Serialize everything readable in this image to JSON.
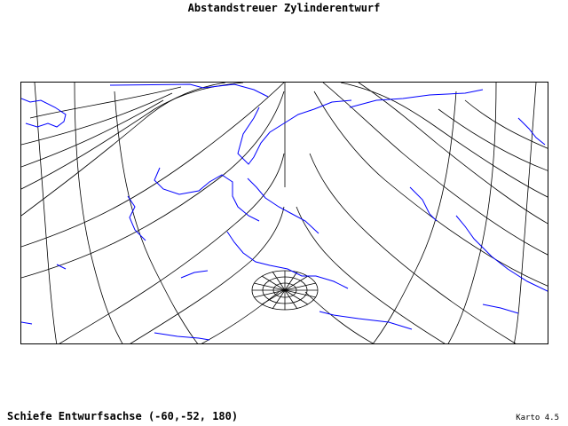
{
  "title": "Abstandstreuer Zylinderentwurf",
  "caption": "Schiefe Entwurfsachse (-60,-52, 180)",
  "version": "Karto 4.5",
  "colors": {
    "grid": "#000000",
    "coast": "#0000ff",
    "frame": "#000000",
    "background": "#ffffff"
  },
  "map": {
    "projection": "equidistant cylindrical (oblique)",
    "graticule_style": "black curved lines",
    "coastline_style": "blue outlines"
  }
}
